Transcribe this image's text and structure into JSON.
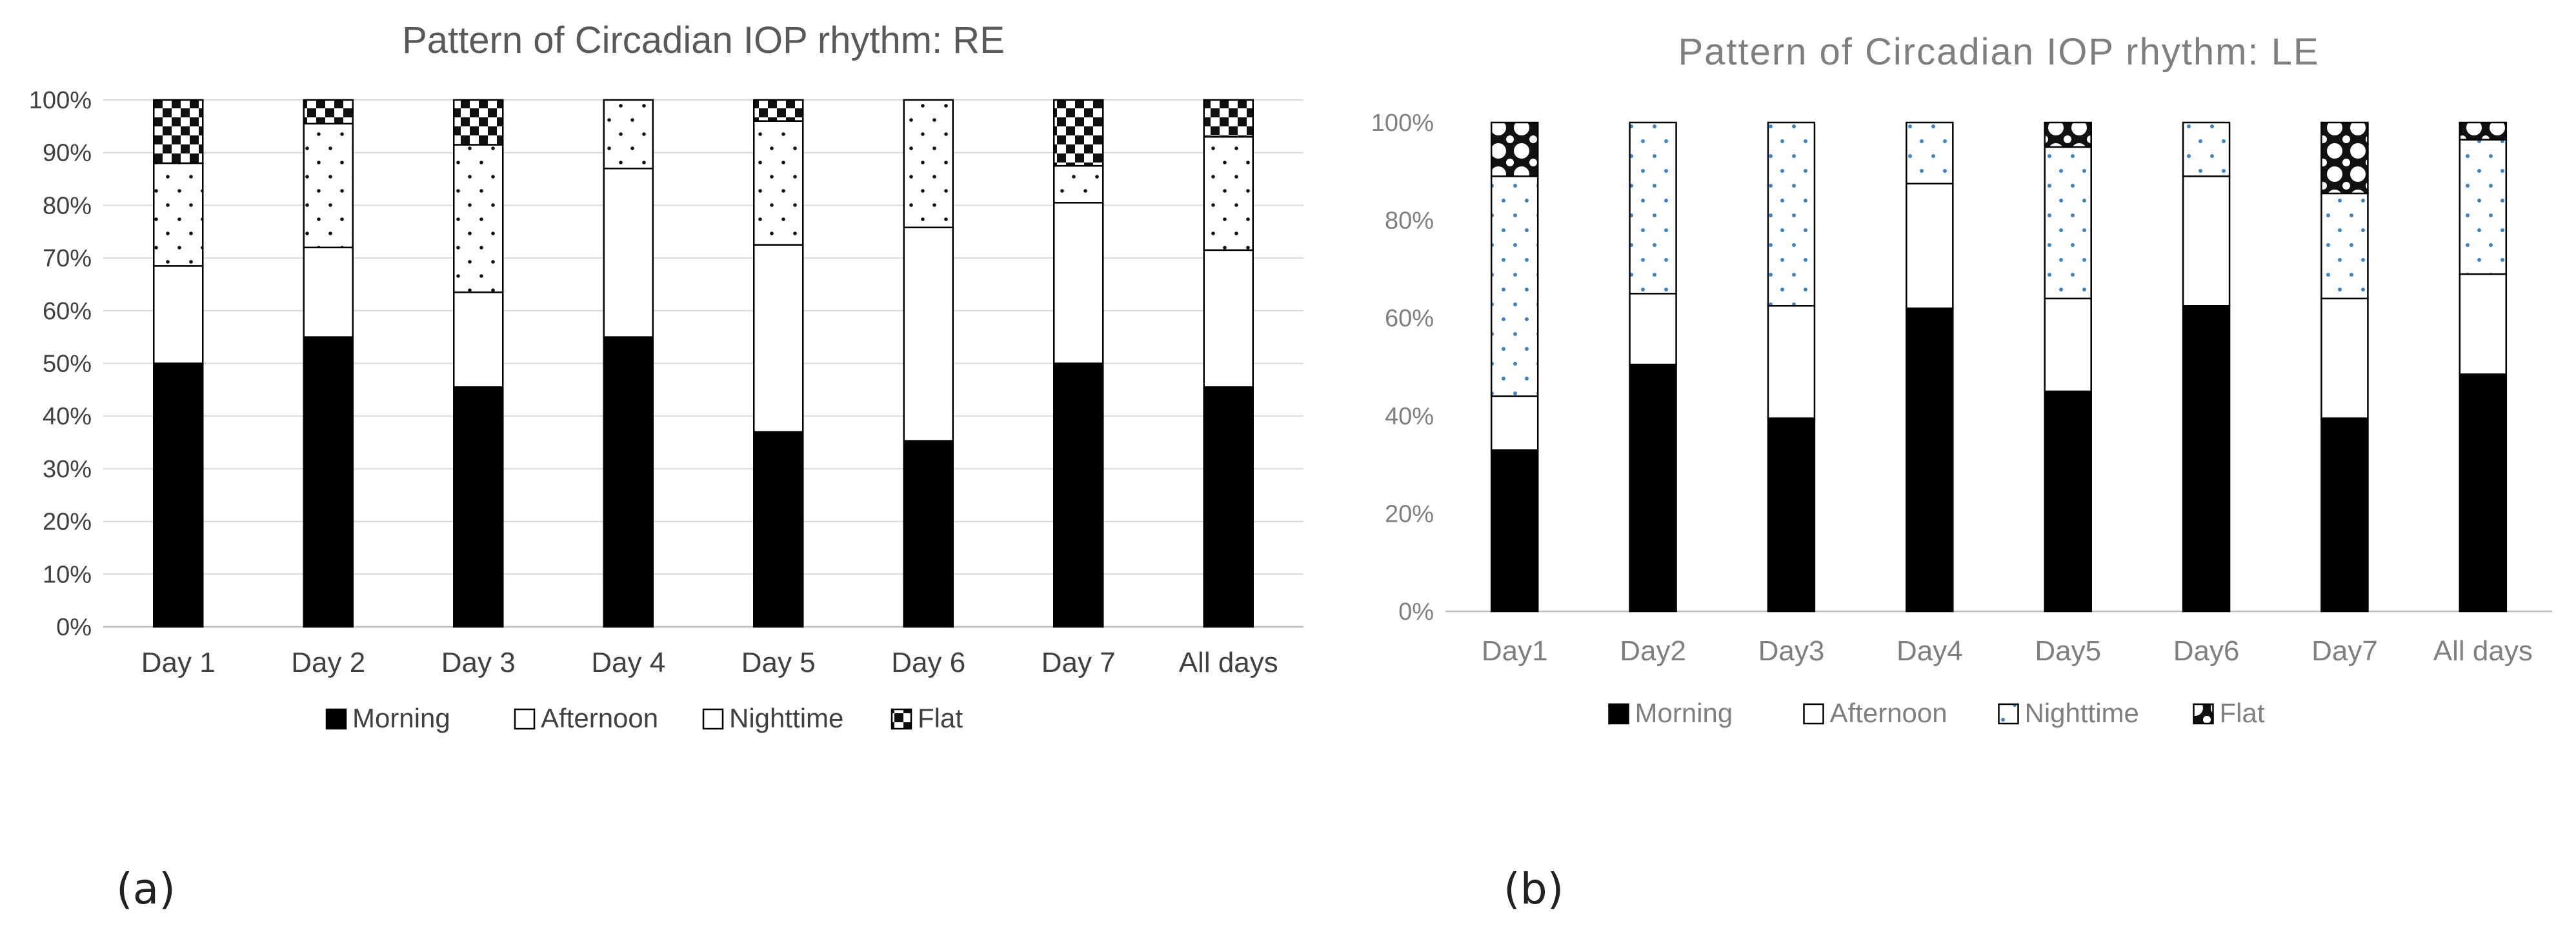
{
  "figure": {
    "panel_labels": [
      "(a)",
      "(b)"
    ]
  },
  "chart_data": [
    {
      "type": "bar",
      "stacked": true,
      "title": "Pattern of Circadian IOP rhythm: RE",
      "xlabel": "",
      "ylabel": "",
      "ylim": [
        0,
        100
      ],
      "yticks": [
        "0%",
        "10%",
        "20%",
        "30%",
        "40%",
        "50%",
        "60%",
        "70%",
        "80%",
        "90%",
        "100%"
      ],
      "grid": true,
      "legend_position": "bottom",
      "categories": [
        "Day 1",
        "Day 2",
        "Day 3",
        "Day 4",
        "Day 5",
        "Day 6",
        "Day 7",
        "All days"
      ],
      "series": [
        {
          "name": "Morning",
          "pattern": "solid",
          "values": [
            50,
            55,
            45.5,
            55,
            37,
            35.3,
            50,
            45.5
          ]
        },
        {
          "name": "Afternoon",
          "pattern": "white",
          "values": [
            18.5,
            17,
            18,
            32,
            35.5,
            40.5,
            30.5,
            26
          ]
        },
        {
          "name": "Nighttime",
          "pattern": "dots",
          "values": [
            19.5,
            23.5,
            28,
            13,
            23.5,
            24.2,
            7,
            21.5
          ]
        },
        {
          "name": "Flat",
          "pattern": "checker",
          "values": [
            12,
            4.5,
            8.5,
            0,
            4,
            0,
            12.5,
            7
          ]
        }
      ]
    },
    {
      "type": "bar",
      "stacked": true,
      "title": "Pattern of Circadian IOP rhythm: LE",
      "xlabel": "",
      "ylabel": "",
      "ylim": [
        0,
        100
      ],
      "yticks": [
        "0%",
        "20%",
        "40%",
        "60%",
        "80%",
        "100%"
      ],
      "grid": false,
      "legend_position": "bottom",
      "categories": [
        "Day1",
        "Day2",
        "Day3",
        "Day4",
        "Day5",
        "Day6",
        "Day7",
        "All days"
      ],
      "series": [
        {
          "name": "Morning",
          "pattern": "solid",
          "values": [
            33,
            50.5,
            39.5,
            62,
            45,
            62.5,
            39.5,
            48.5
          ]
        },
        {
          "name": "Afternoon",
          "pattern": "white",
          "values": [
            11,
            14.5,
            23,
            25.5,
            19,
            26.5,
            24.5,
            20.5
          ]
        },
        {
          "name": "Nighttime",
          "pattern": "bluedots",
          "values": [
            45,
            35,
            37.5,
            12.5,
            31,
            11,
            21.5,
            27.5
          ]
        },
        {
          "name": "Flat",
          "pattern": "quatrefoil",
          "values": [
            11,
            0,
            0,
            0,
            5,
            0,
            14.5,
            3.5
          ]
        }
      ]
    }
  ]
}
